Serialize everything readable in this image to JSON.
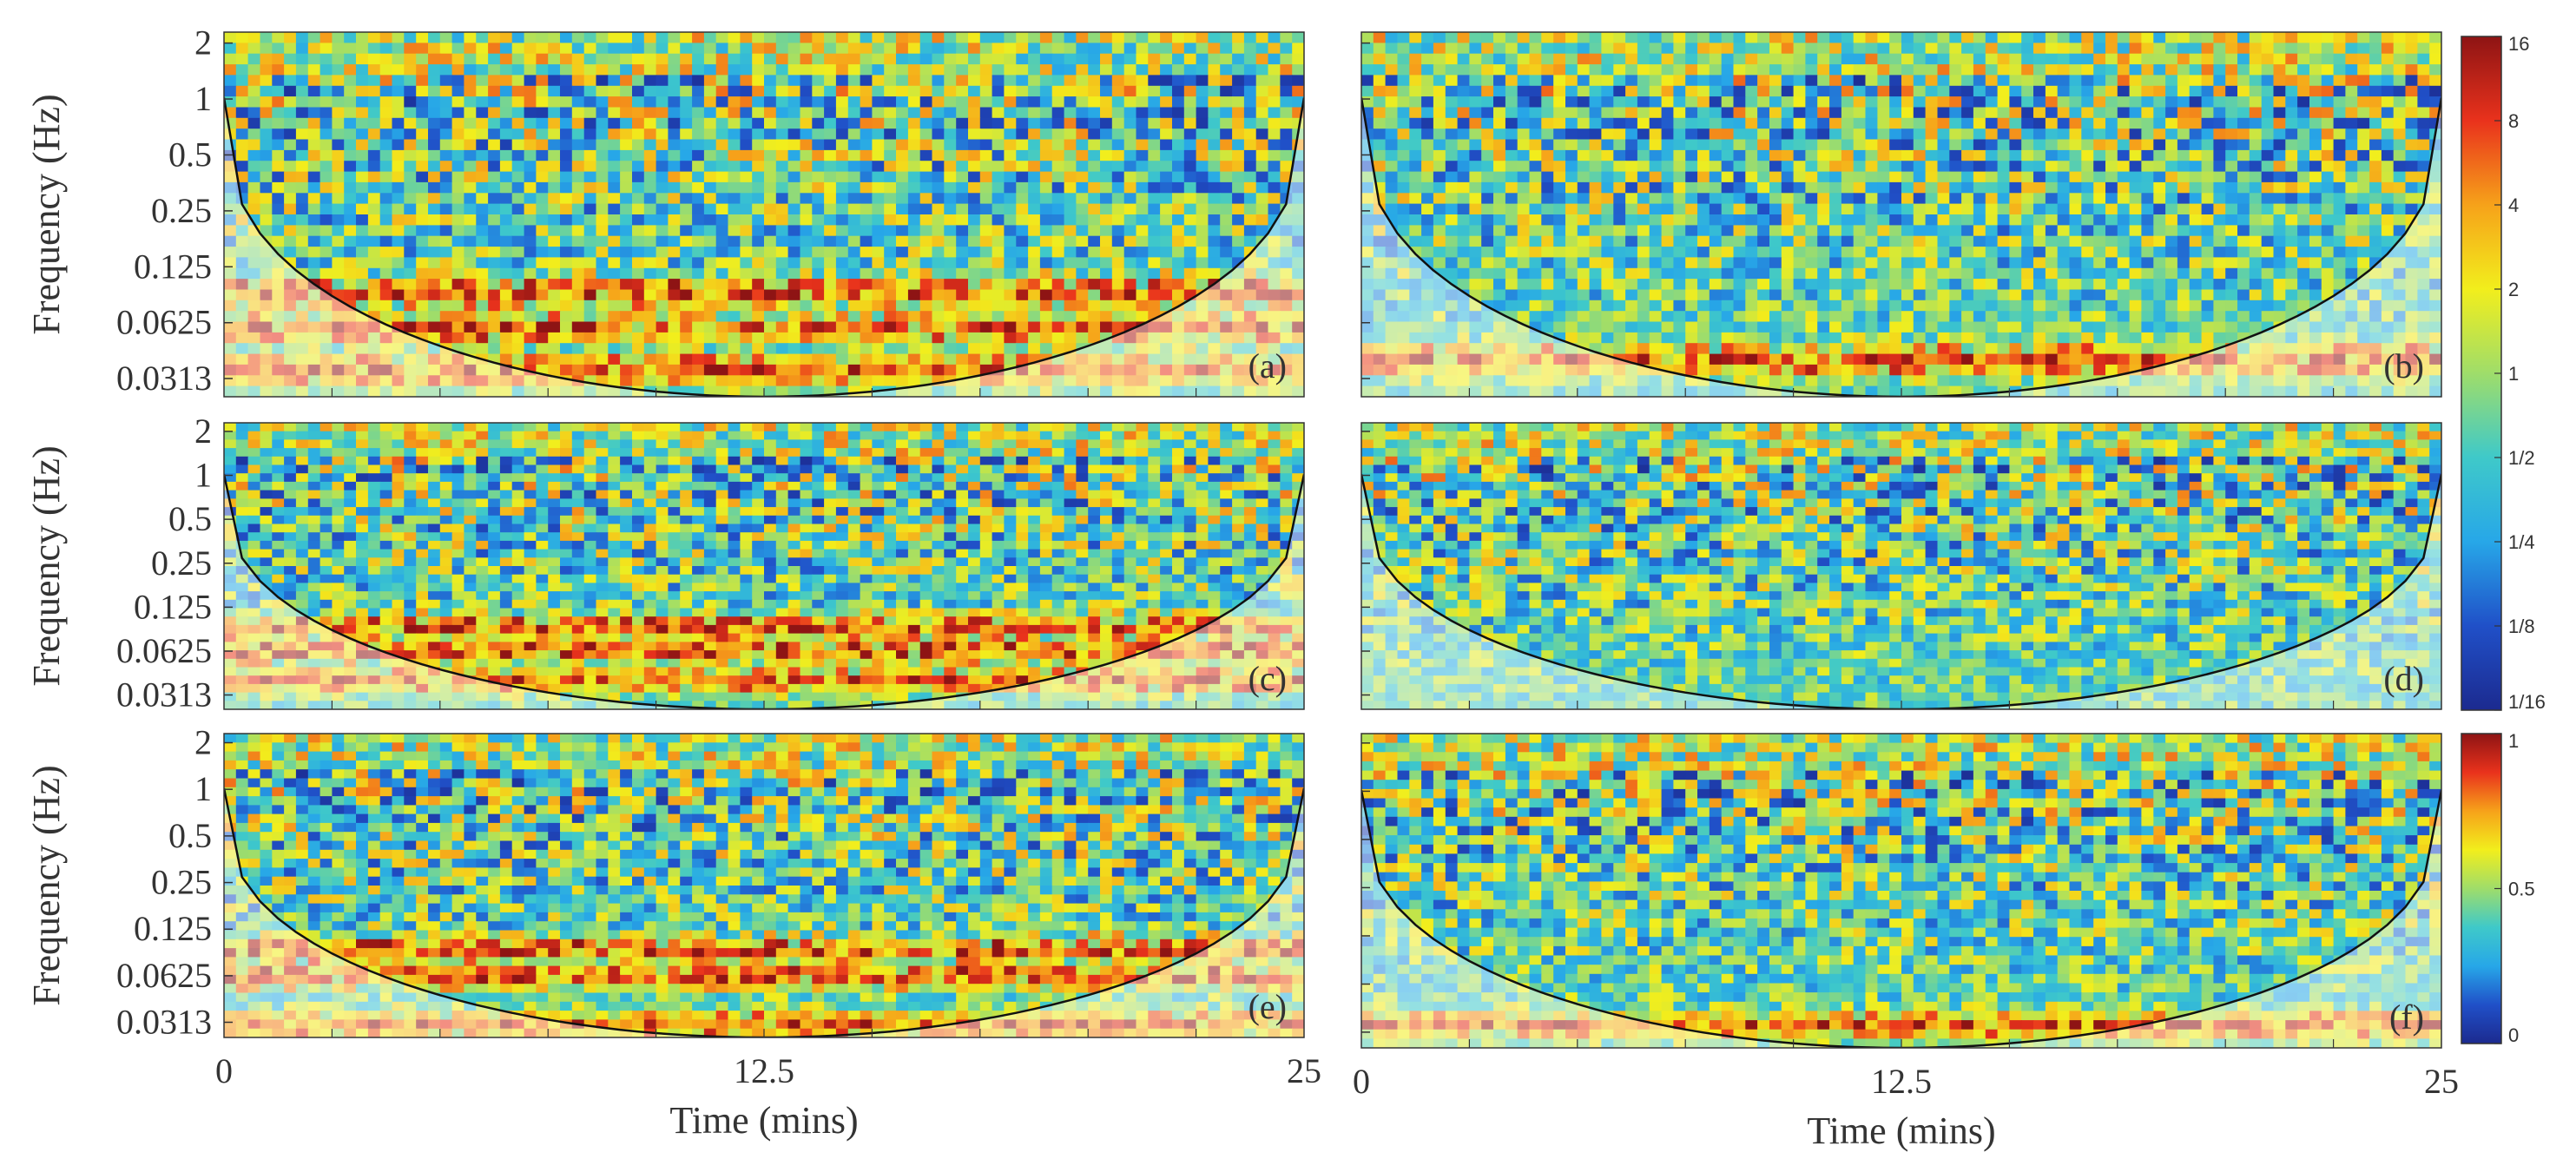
{
  "colors": {
    "colormap": [
      "#1c2a8f",
      "#2050c8",
      "#27a7e8",
      "#3fc9c9",
      "#9fdd6a",
      "#f2ee1c",
      "#f6a21a",
      "#e9321c",
      "#8e1414"
    ],
    "cone_shade": "rgba(255,255,255,0.45)",
    "cone_line": "#111111"
  },
  "chart_data": [
    {
      "panel": "(a)",
      "type": "heatmap",
      "tag": "(a)",
      "ylabel": "Frequency (Hz)",
      "xlabel": "",
      "yticks": [
        "2",
        "1",
        "0.5",
        "0.25",
        "0.125",
        "0.0625",
        "0.0313"
      ],
      "xticks": [],
      "xlim": [
        0,
        25
      ],
      "ylim": [
        0.0313,
        2
      ],
      "y_scale": "log2",
      "colorbar": "power",
      "hot_bands": [
        0.04,
        0.065,
        0.1
      ]
    },
    {
      "panel": "(b)",
      "type": "heatmap",
      "tag": "(b)",
      "ylabel": "",
      "xlabel": "",
      "yticks": [],
      "xticks": [],
      "xlim": [
        0,
        25
      ],
      "ylim": [
        0.0313,
        2
      ],
      "y_scale": "log2",
      "colorbar": "power",
      "hot_bands": [
        0.045
      ]
    },
    {
      "panel": "(c)",
      "type": "heatmap",
      "tag": "(c)",
      "ylabel": "Frequency (Hz)",
      "xlabel": "",
      "yticks": [
        "2",
        "1",
        "0.5",
        "0.25",
        "0.125",
        "0.0625",
        "0.0313"
      ],
      "xticks": [],
      "xlim": [
        0,
        25
      ],
      "ylim": [
        0.0313,
        2
      ],
      "y_scale": "log2",
      "colorbar": "power",
      "hot_bands": [
        0.045,
        0.07,
        0.1
      ]
    },
    {
      "panel": "(d)",
      "type": "heatmap",
      "tag": "(d)",
      "ylabel": "",
      "xlabel": "",
      "yticks": [],
      "xticks": [],
      "xlim": [
        0,
        25
      ],
      "ylim": [
        0.0313,
        2
      ],
      "y_scale": "log2",
      "colorbar": "power",
      "hot_bands": []
    },
    {
      "panel": "(e)",
      "type": "heatmap",
      "tag": "(e)",
      "ylabel": "Frequency (Hz)",
      "xlabel": "Time (mins)",
      "yticks": [
        "2",
        "1",
        "0.5",
        "0.25",
        "0.125",
        "0.0625",
        "0.0313"
      ],
      "xticks": [
        "0",
        "12.5",
        "25"
      ],
      "xlim": [
        0,
        25
      ],
      "ylim": [
        0.0313,
        2
      ],
      "y_scale": "log2",
      "colorbar": "coherence",
      "hot_bands": [
        0.035,
        0.07,
        0.1
      ]
    },
    {
      "panel": "(f)",
      "type": "heatmap",
      "tag": "(f)",
      "ylabel": "",
      "xlabel": "Time (mins)",
      "yticks": [],
      "xticks": [
        "0",
        "12.5",
        "25"
      ],
      "xlim": [
        0,
        25
      ],
      "ylim": [
        0.0313,
        2
      ],
      "y_scale": "log2",
      "colorbar": "coherence",
      "hot_bands": [
        0.04
      ]
    }
  ],
  "colorbars": {
    "power": {
      "ticks": [
        "16",
        "8",
        "4",
        "2",
        "1",
        "1/2",
        "1/4",
        "1/8",
        "1/16"
      ],
      "range": [
        0.0625,
        16
      ],
      "scale": "log2"
    },
    "coherence": {
      "ticks": [
        "1",
        "0.5",
        "0"
      ],
      "range": [
        0,
        1
      ],
      "scale": "linear"
    }
  }
}
